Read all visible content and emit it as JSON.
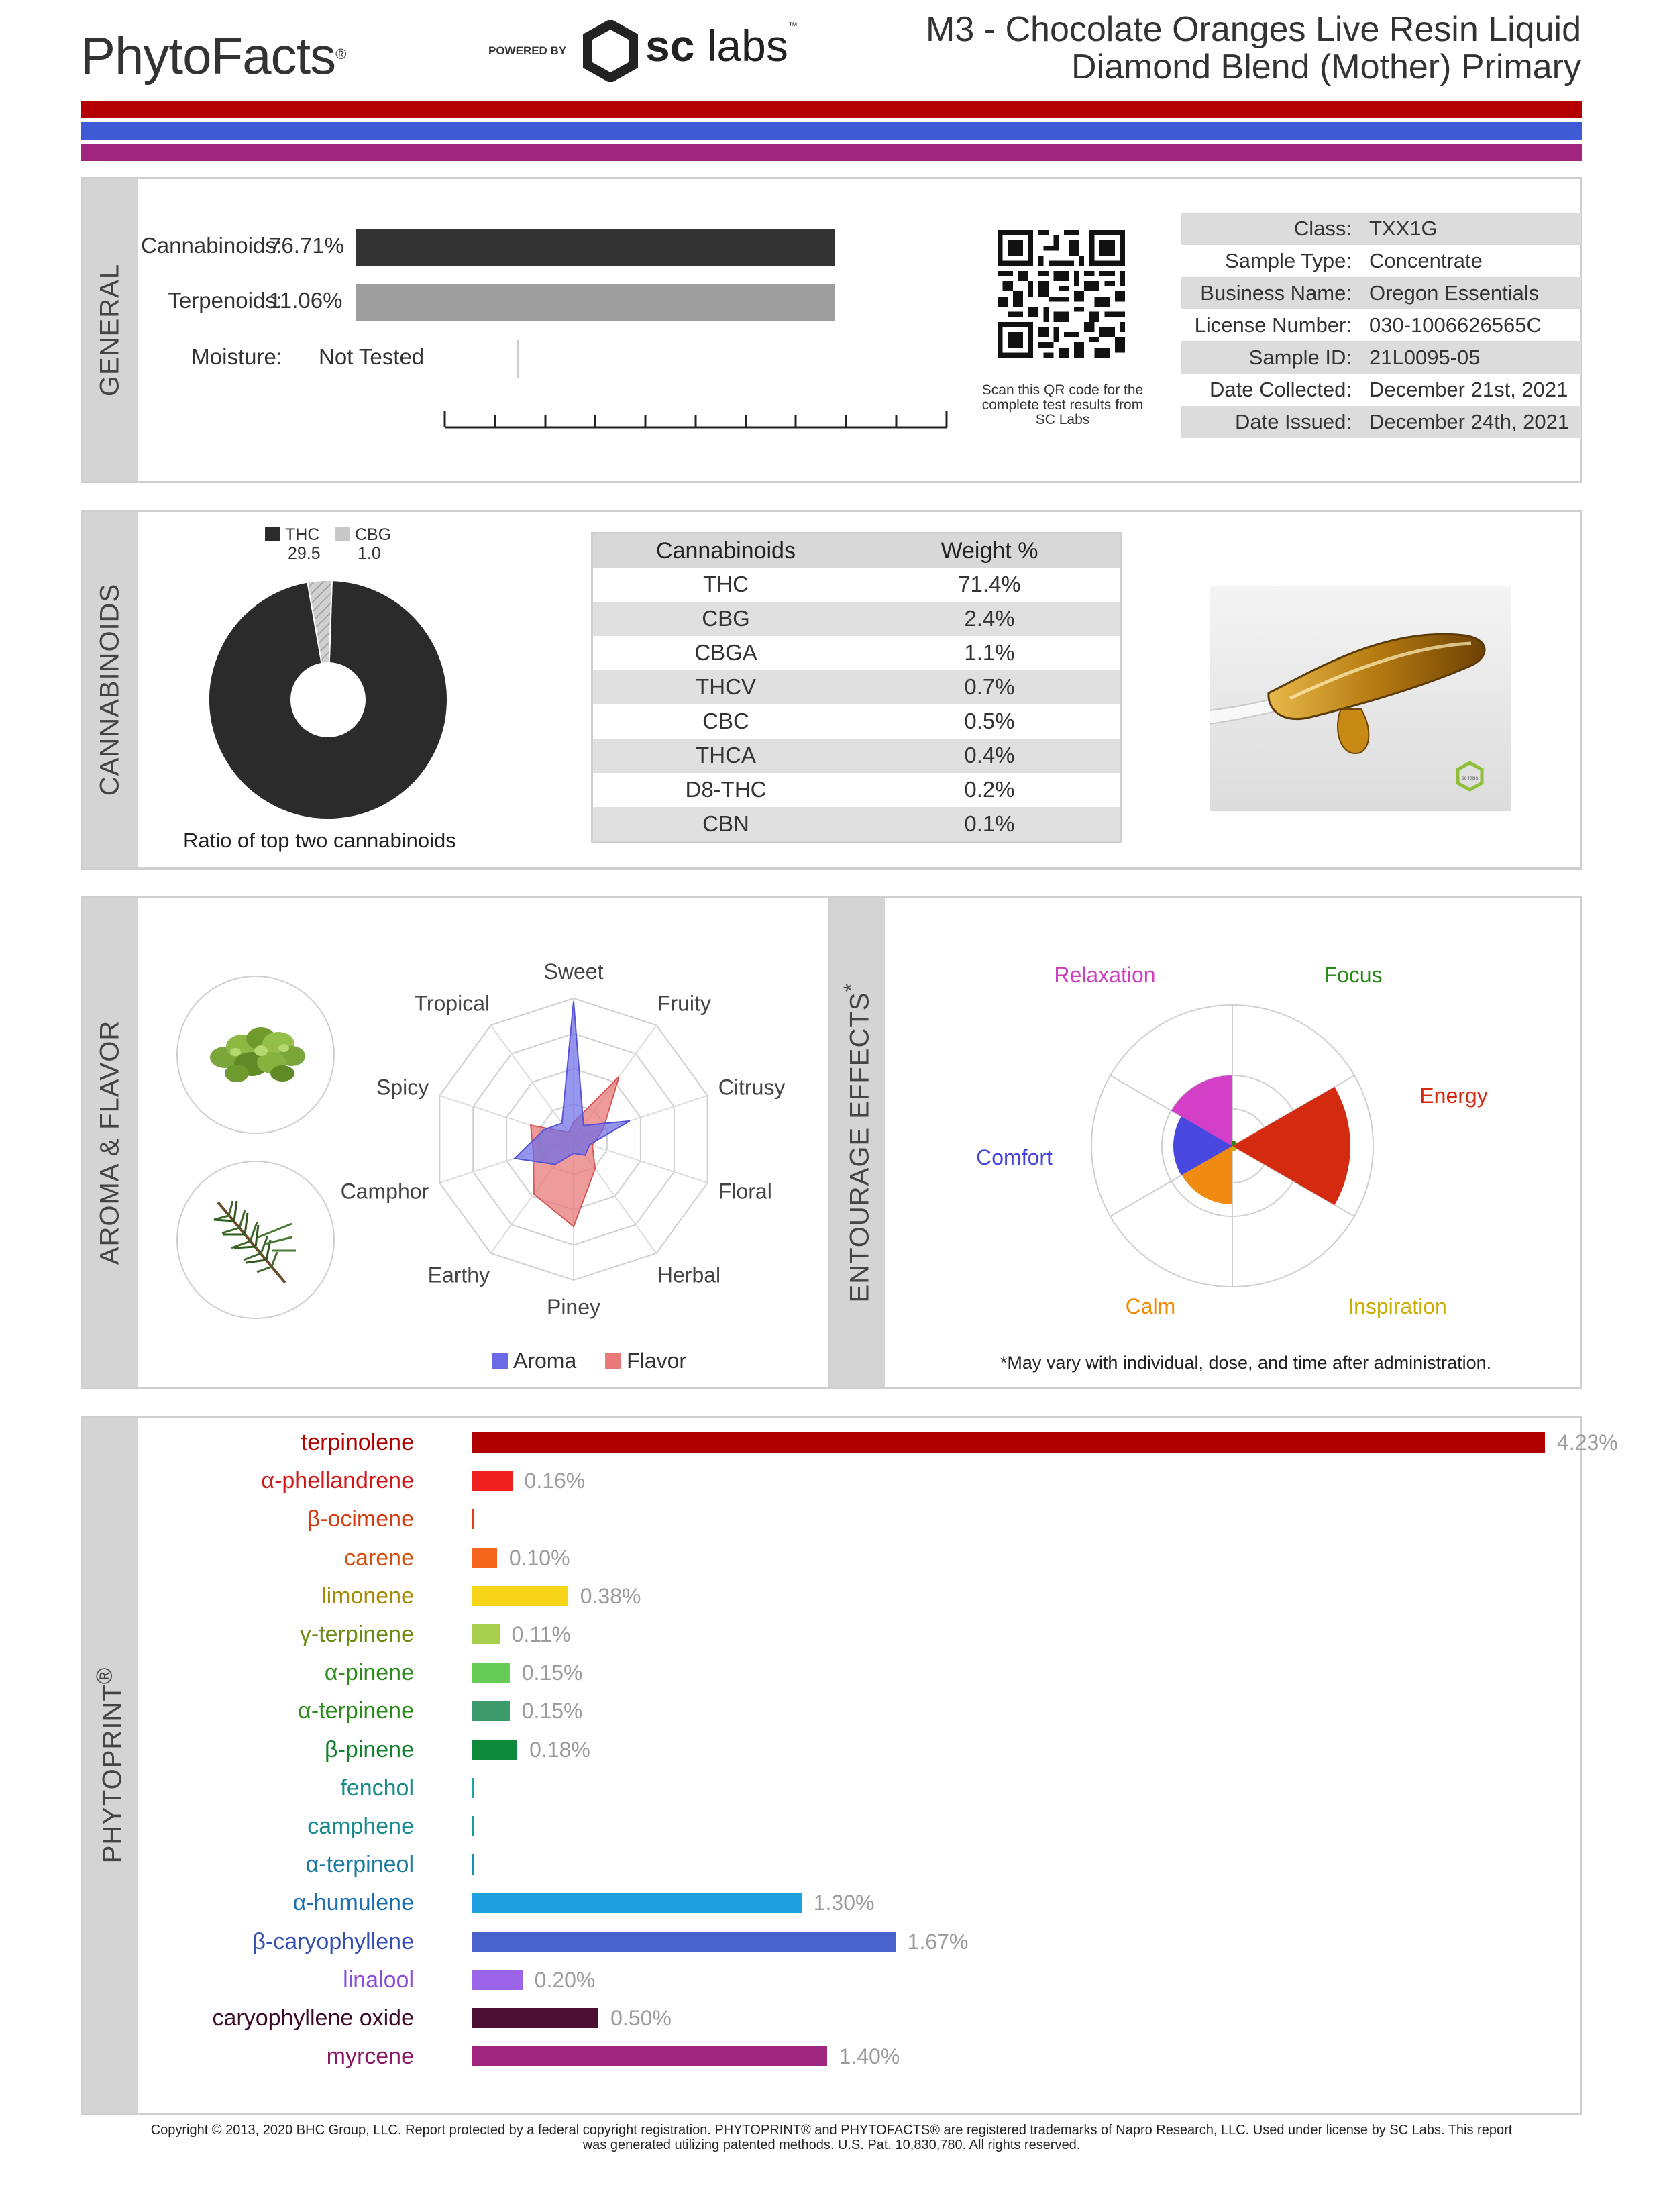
{
  "header": {
    "brand": "PhytoFacts",
    "brand_mark": "®",
    "powered_by": "POWERED BY",
    "lab_name_bold": "sc",
    "lab_name_light": " labs",
    "lab_mark": "™",
    "title_line1": "M3 - Chocolate Oranges Live Resin Liquid",
    "title_line2": "Diamond Blend (Mother) Primary",
    "stripe_colors": [
      "#b40000",
      "#3e5bd4",
      "#a0257e"
    ]
  },
  "general": {
    "side_label": "GENERAL",
    "rows": [
      {
        "label": "Cannabinoids:",
        "value": "76.71%",
        "fraction": 1.0,
        "color": "#333333"
      },
      {
        "label": "Terpenoids:",
        "value": "11.06%",
        "fraction": 1.0,
        "color": "#9e9e9e"
      },
      {
        "label": "Moisture:",
        "value": "Not Tested",
        "fraction": 0,
        "color": "#cccccc"
      }
    ],
    "qr_caption": "Scan this QR code for the complete test results from SC Labs",
    "info": [
      {
        "key": "Class:",
        "value": "TXX1G"
      },
      {
        "key": "Sample Type:",
        "value": "Concentrate"
      },
      {
        "key": "Business Name:",
        "value": "Oregon Essentials"
      },
      {
        "key": "License Number:",
        "value": "030-1006626565C"
      },
      {
        "key": "Sample ID:",
        "value": "21L0095-05"
      },
      {
        "key": "Date Collected:",
        "value": "December 21st, 2021"
      },
      {
        "key": "Date Issued:",
        "value": "December 24th, 2021"
      }
    ]
  },
  "cannabinoids": {
    "side_label": "CANNABINOIDS",
    "legend": [
      {
        "name": "THC",
        "ratio": "29.5",
        "color": "#2b2b2b"
      },
      {
        "name": "CBG",
        "ratio": "1.0",
        "color": "#c8c8c8"
      }
    ],
    "ratio_label": "Ratio of top two cannabinoids",
    "table_headers": [
      "Cannabinoids",
      "Weight %"
    ],
    "table": [
      {
        "name": "THC",
        "weight": "71.4%"
      },
      {
        "name": "CBG",
        "weight": "2.4%"
      },
      {
        "name": "CBGA",
        "weight": "1.1%"
      },
      {
        "name": "THCV",
        "weight": "0.7%"
      },
      {
        "name": "CBC",
        "weight": "0.5%"
      },
      {
        "name": "THCA",
        "weight": "0.4%"
      },
      {
        "name": "D8-THC",
        "weight": "0.2%"
      },
      {
        "name": "CBN",
        "weight": "0.1%"
      }
    ],
    "lab_badge": "sc labs"
  },
  "aroma": {
    "side_label": "AROMA & FLAVOR",
    "images": [
      "hops-icon",
      "pine-branch-icon"
    ],
    "axes": [
      "Sweet",
      "Fruity",
      "Citrusy",
      "Floral",
      "Herbal",
      "Piney",
      "Earthy",
      "Camphor",
      "Spicy",
      "Tropical"
    ],
    "legend": [
      {
        "name": "Aroma",
        "color": "#6b6be8"
      },
      {
        "name": "Flavor",
        "color": "#e87a7a"
      }
    ]
  },
  "effects": {
    "side_label": "ENTOURAGE EFFECTS",
    "side_mark": "*",
    "labels": [
      {
        "name": "Relaxation",
        "color": "#cc3fbf"
      },
      {
        "name": "Focus",
        "color": "#2a8a1a"
      },
      {
        "name": "Energy",
        "color": "#d42a10"
      },
      {
        "name": "Inspiration",
        "color": "#c9ad00"
      },
      {
        "name": "Calm",
        "color": "#f08a00"
      },
      {
        "name": "Comfort",
        "color": "#4444dd"
      }
    ],
    "note": "*May vary with individual, dose, and time after administration."
  },
  "phytoprint": {
    "side_label": "PHYTOPRINT",
    "side_mark": "®",
    "max_value": 4.23,
    "terpenes": [
      {
        "name": "terpinolene",
        "value": 4.23,
        "label": "4.23%",
        "color": "#b00000"
      },
      {
        "name": "α-phellandrene",
        "value": 0.16,
        "label": "0.16%",
        "color": "#ee2020"
      },
      {
        "name": "β-ocimene",
        "value": 0,
        "label": "",
        "color": "#e0401a"
      },
      {
        "name": "carene",
        "value": 0.1,
        "label": "0.10%",
        "color": "#f5661c"
      },
      {
        "name": "limonene",
        "value": 0.38,
        "label": "0.38%",
        "color": "#f7d418"
      },
      {
        "name": "γ-terpinene",
        "value": 0.11,
        "label": "0.11%",
        "color": "#a9cf4e"
      },
      {
        "name": "α-pinene",
        "value": 0.15,
        "label": "0.15%",
        "color": "#66cc55"
      },
      {
        "name": "α-terpinene",
        "value": 0.15,
        "label": "0.15%",
        "color": "#3d9a6a"
      },
      {
        "name": "β-pinene",
        "value": 0.18,
        "label": "0.18%",
        "color": "#0f8a3c"
      },
      {
        "name": "fenchol",
        "value": 0,
        "label": "",
        "color": "#18a6a6"
      },
      {
        "name": "camphene",
        "value": 0,
        "label": "",
        "color": "#1a9999"
      },
      {
        "name": "α-terpineol",
        "value": 0,
        "label": "",
        "color": "#1a8fb5"
      },
      {
        "name": "α-humulene",
        "value": 1.3,
        "label": "1.30%",
        "color": "#1ea0e0"
      },
      {
        "name": "β-caryophyllene",
        "value": 1.67,
        "label": "1.67%",
        "color": "#4a63cc"
      },
      {
        "name": "linalool",
        "value": 0.2,
        "label": "0.20%",
        "color": "#9b64e8"
      },
      {
        "name": "caryophyllene oxide",
        "value": 0.5,
        "label": "0.50%",
        "color": "#4d1035"
      },
      {
        "name": "myrcene",
        "value": 1.4,
        "label": "1.40%",
        "color": "#a0257e"
      }
    ],
    "name_colors": [
      "#b00000",
      "#d41515",
      "#d43c12",
      "#d45012",
      "#a48a00",
      "#6a8a10",
      "#2a8a1a",
      "#2a8a1a",
      "#138030",
      "#1a8a8a",
      "#1a8a8a",
      "#1a7aa0",
      "#1a6fb0",
      "#3550b0",
      "#8a50d8",
      "#3a0a28",
      "#8a1a66"
    ]
  },
  "footer": {
    "line1": "Copyright © 2013, 2020 BHC Group, LLC. Report protected by a federal copyright registration. PHYTOPRINT® and PHYTOFACTS® are registered trademarks of Napro Research, LLC. Used under license by SC Labs. This report",
    "line2": "was generated utilizing patented methods. U.S. Pat. 10,830,780. All rights reserved."
  }
}
